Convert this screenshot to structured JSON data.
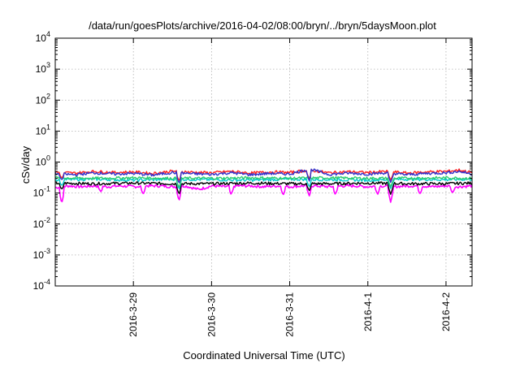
{
  "chart_data": {
    "type": "line",
    "title": "/data/run/goesPlots/archive/2016-04-02/08:00/bryn/../bryn/5daysMoon.plot",
    "xlabel": "Coordinated Universal Time (UTC)",
    "ylabel": "cSv/day",
    "yscale": "log",
    "ylim": [
      0.0001,
      10000
    ],
    "ytick_labels": [
      {
        "value": 10000,
        "base": "10",
        "exp": "4"
      },
      {
        "value": 1000,
        "base": "10",
        "exp": "3"
      },
      {
        "value": 100,
        "base": "10",
        "exp": "2"
      },
      {
        "value": 10,
        "base": "10",
        "exp": "1"
      },
      {
        "value": 1,
        "base": "10",
        "exp": "0"
      },
      {
        "value": 0.1,
        "base": "10",
        "exp": "-1"
      },
      {
        "value": 0.01,
        "base": "10",
        "exp": "-2"
      },
      {
        "value": 0.001,
        "base": "10",
        "exp": "-3"
      },
      {
        "value": 0.0001,
        "base": "10",
        "exp": "-4"
      }
    ],
    "xlim": [
      "2016-03-28T00:00",
      "2016-04-02T08:00"
    ],
    "xtick_labels": [
      {
        "date": "2016-03-29T00:00",
        "label": "2016-3-29"
      },
      {
        "date": "2016-03-30T00:00",
        "label": "2016-3-30"
      },
      {
        "date": "2016-03-31T00:00",
        "label": "2016-3-31"
      },
      {
        "date": "2016-04-01T00:00",
        "label": "2016-4-1"
      },
      {
        "date": "2016-04-02T00:00",
        "label": "2016-4-2"
      }
    ],
    "grid": true,
    "legend": "none",
    "series": [
      {
        "color": "#ff00ff",
        "baseline": 0.17,
        "x": [
          "2016-03-28T00:00",
          "2016-03-28T04:00",
          "2016-03-28T08:00",
          "2016-03-28T12:00",
          "2016-03-28T16:00",
          "2016-03-28T20:00",
          "2016-03-29T00:00",
          "2016-03-29T04:00",
          "2016-03-29T08:00",
          "2016-03-29T12:00",
          "2016-03-29T16:00",
          "2016-03-29T20:00",
          "2016-03-30T00:00",
          "2016-03-30T04:00",
          "2016-03-30T08:00",
          "2016-03-30T12:00",
          "2016-03-30T16:00",
          "2016-03-30T20:00",
          "2016-03-31T00:00",
          "2016-03-31T04:00",
          "2016-03-31T08:00",
          "2016-03-31T12:00",
          "2016-03-31T16:00",
          "2016-03-31T20:00",
          "2016-04-01T00:00",
          "2016-04-01T04:00",
          "2016-04-01T08:00",
          "2016-04-01T12:00",
          "2016-04-01T16:00",
          "2016-04-01T20:00",
          "2016-04-02T00:00",
          "2016-04-02T04:00",
          "2016-04-02T08:00"
        ],
        "y": [
          0.15,
          0.17,
          0.16,
          0.17,
          0.16,
          0.17,
          0.16,
          0.17,
          0.17,
          0.16,
          0.17,
          0.13,
          0.17,
          0.16,
          0.17,
          0.17,
          0.16,
          0.17,
          0.16,
          0.17,
          0.17,
          0.16,
          0.17,
          0.17,
          0.16,
          0.17,
          0.16,
          0.17,
          0.17,
          0.16,
          0.17,
          0.16,
          0.17
        ],
        "dips": [
          [
            "2016-03-28T02:00",
            0.045
          ],
          [
            "2016-03-28T14:00",
            0.11
          ],
          [
            "2016-03-29T03:00",
            0.09
          ],
          [
            "2016-03-29T14:00",
            0.055
          ],
          [
            "2016-03-30T06:00",
            0.09
          ],
          [
            "2016-03-30T22:00",
            0.085
          ],
          [
            "2016-03-31T06:00",
            0.08
          ],
          [
            "2016-03-31T14:00",
            0.09
          ],
          [
            "2016-04-01T03:00",
            0.09
          ],
          [
            "2016-04-01T07:00",
            0.05
          ],
          [
            "2016-04-01T16:00",
            0.09
          ],
          [
            "2016-04-02T02:00",
            0.1
          ]
        ]
      },
      {
        "color": "#000000",
        "baseline": 0.2,
        "x": [
          "2016-03-28T00:00",
          "2016-03-28T12:00",
          "2016-03-29T00:00",
          "2016-03-29T12:00",
          "2016-03-30T00:00",
          "2016-03-30T12:00",
          "2016-03-31T00:00",
          "2016-03-31T12:00",
          "2016-04-01T00:00",
          "2016-04-01T12:00",
          "2016-04-02T00:00",
          "2016-04-02T08:00"
        ],
        "y": [
          0.21,
          0.2,
          0.21,
          0.2,
          0.2,
          0.21,
          0.2,
          0.2,
          0.21,
          0.2,
          0.2,
          0.21
        ],
        "dips": [
          [
            "2016-03-28T02:00",
            0.13
          ],
          [
            "2016-03-29T14:00",
            0.09
          ],
          [
            "2016-03-31T06:00",
            0.12
          ],
          [
            "2016-04-01T07:00",
            0.09
          ]
        ]
      },
      {
        "color": "#00cccc",
        "baseline": 0.26,
        "x": [
          "2016-03-28T00:00",
          "2016-03-28T12:00",
          "2016-03-29T00:00",
          "2016-03-29T12:00",
          "2016-03-30T00:00",
          "2016-03-30T12:00",
          "2016-03-31T00:00",
          "2016-03-31T12:00",
          "2016-04-01T00:00",
          "2016-04-01T12:00",
          "2016-04-02T00:00",
          "2016-04-02T08:00"
        ],
        "y": [
          0.27,
          0.28,
          0.26,
          0.28,
          0.27,
          0.26,
          0.28,
          0.27,
          0.26,
          0.28,
          0.27,
          0.28
        ],
        "dips": [
          [
            "2016-03-28T02:00",
            0.17
          ],
          [
            "2016-03-29T14:00",
            0.13
          ],
          [
            "2016-03-31T06:00",
            0.16
          ],
          [
            "2016-04-01T07:00",
            0.14
          ]
        ]
      },
      {
        "color": "#2ecc71",
        "baseline": 0.3,
        "x": [
          "2016-03-28T00:00",
          "2016-03-28T12:00",
          "2016-03-29T00:00",
          "2016-03-29T12:00",
          "2016-03-30T00:00",
          "2016-03-30T12:00",
          "2016-03-31T00:00",
          "2016-03-31T12:00",
          "2016-04-01T00:00",
          "2016-04-01T12:00",
          "2016-04-02T00:00",
          "2016-04-02T08:00"
        ],
        "y": [
          0.31,
          0.3,
          0.31,
          0.3,
          0.3,
          0.31,
          0.3,
          0.31,
          0.3,
          0.3,
          0.31,
          0.3
        ],
        "dips": [
          [
            "2016-03-29T14:00",
            0.15
          ],
          [
            "2016-04-01T07:00",
            0.16
          ]
        ]
      },
      {
        "color": "#ff2020",
        "baseline": 0.45,
        "x": [
          "2016-03-28T00:00",
          "2016-03-28T06:00",
          "2016-03-28T12:00",
          "2016-03-28T18:00",
          "2016-03-29T00:00",
          "2016-03-29T06:00",
          "2016-03-29T12:00",
          "2016-03-29T18:00",
          "2016-03-30T00:00",
          "2016-03-30T06:00",
          "2016-03-30T12:00",
          "2016-03-30T18:00",
          "2016-03-31T00:00",
          "2016-03-31T06:00",
          "2016-03-31T12:00",
          "2016-03-31T18:00",
          "2016-04-01T00:00",
          "2016-04-01T06:00",
          "2016-04-01T12:00",
          "2016-04-01T18:00",
          "2016-04-02T00:00",
          "2016-04-02T04:00",
          "2016-04-02T08:00"
        ],
        "y": [
          0.47,
          0.44,
          0.5,
          0.46,
          0.48,
          0.43,
          0.51,
          0.47,
          0.45,
          0.5,
          0.44,
          0.48,
          0.46,
          0.55,
          0.45,
          0.49,
          0.46,
          0.5,
          0.44,
          0.48,
          0.5,
          0.55,
          0.46
        ],
        "dips": [
          [
            "2016-03-28T02:00",
            0.3
          ],
          [
            "2016-03-29T14:00",
            0.24
          ],
          [
            "2016-03-31T06:00",
            0.28
          ],
          [
            "2016-04-01T07:00",
            0.26
          ]
        ]
      },
      {
        "color": "#3030cc",
        "baseline": 0.4,
        "x": [
          "2016-03-28T00:00",
          "2016-03-28T06:00",
          "2016-03-28T12:00",
          "2016-03-28T18:00",
          "2016-03-29T00:00",
          "2016-03-29T06:00",
          "2016-03-29T12:00",
          "2016-03-29T18:00",
          "2016-03-30T00:00",
          "2016-03-30T06:00",
          "2016-03-30T12:00",
          "2016-03-30T18:00",
          "2016-03-31T00:00",
          "2016-03-31T06:00",
          "2016-03-31T12:00",
          "2016-03-31T18:00",
          "2016-04-01T00:00",
          "2016-04-01T06:00",
          "2016-04-01T12:00",
          "2016-04-01T18:00",
          "2016-04-02T00:00",
          "2016-04-02T04:00",
          "2016-04-02T08:00"
        ],
        "y": [
          0.42,
          0.39,
          0.45,
          0.41,
          0.43,
          0.38,
          0.46,
          0.42,
          0.4,
          0.45,
          0.39,
          0.43,
          0.41,
          0.6,
          0.4,
          0.44,
          0.41,
          0.45,
          0.39,
          0.43,
          0.45,
          0.5,
          0.41
        ],
        "dips": [
          [
            "2016-03-28T02:00",
            0.26
          ],
          [
            "2016-03-29T14:00",
            0.2
          ],
          [
            "2016-03-31T06:00",
            0.24
          ],
          [
            "2016-04-01T07:00",
            0.22
          ]
        ]
      }
    ]
  }
}
